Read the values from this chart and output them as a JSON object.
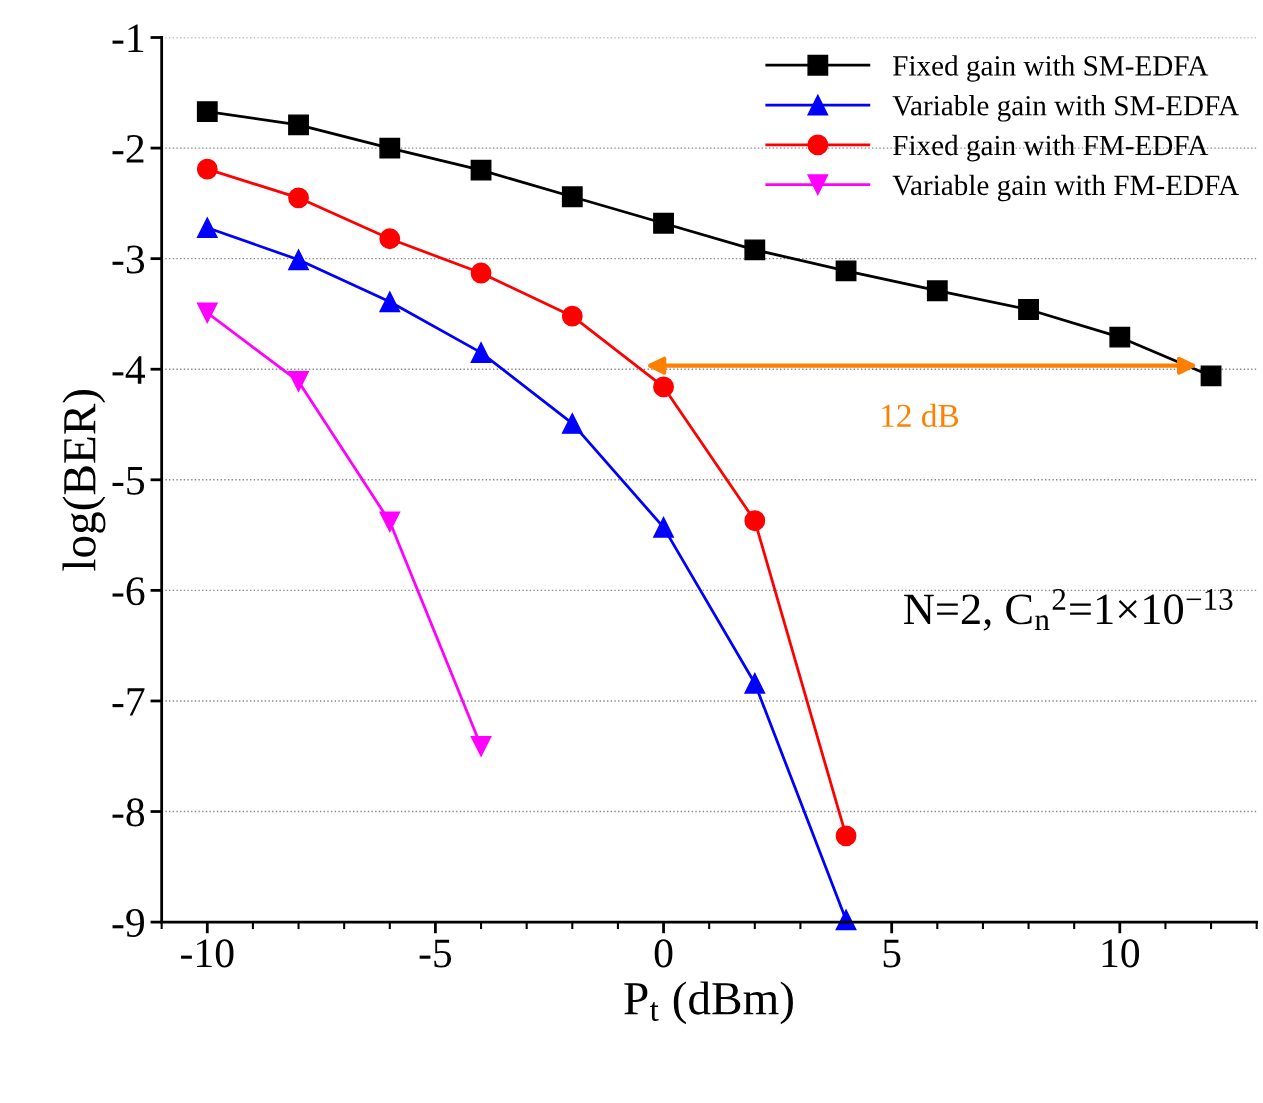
{
  "chart_data": {
    "type": "line",
    "xlabel": "P$_{t}$ (dBm)",
    "ylabel": "log(BER)",
    "x": [
      -10,
      -8,
      -6,
      -4,
      -2,
      0,
      2,
      4,
      6,
      8,
      10,
      12
    ],
    "series": [
      {
        "name": "Fixed gain with SM-EDFA",
        "color": "#000000",
        "marker": "square",
        "values": [
          -1.67,
          -1.79,
          -2.0,
          -2.2,
          -2.44,
          -2.68,
          -2.92,
          -3.11,
          -3.29,
          -3.46,
          -3.71,
          -4.06
        ]
      },
      {
        "name": "Variable gain with SM-EDFA",
        "color": "#0000ff",
        "marker": "triangle",
        "values": [
          -2.72,
          -3.01,
          -3.39,
          -3.85,
          -4.49,
          -5.43,
          -6.84,
          -8.98,
          null,
          null,
          null,
          null
        ]
      },
      {
        "name": "Fixed gain with FM-EDFA",
        "color": "#ff0000",
        "marker": "circle",
        "values": [
          -2.19,
          -2.45,
          -2.82,
          -3.13,
          -3.52,
          -4.16,
          -5.37,
          -8.22,
          null,
          null,
          null,
          null
        ]
      },
      {
        "name": "Variable gain with FM-EDFA",
        "color": "#ff00ff",
        "marker": "triangle_down",
        "values": [
          -3.49,
          -4.11,
          -5.38,
          -7.41,
          null,
          null,
          null,
          null,
          null,
          null,
          null,
          null
        ]
      }
    ],
    "xlim": [
      -11,
      13
    ],
    "xticks": [
      -10,
      -5,
      0,
      5,
      10
    ],
    "ylim": [
      -9,
      -1
    ],
    "yticks": [
      -9,
      -8,
      -7,
      -6,
      -5,
      -4,
      -3,
      -2,
      -1
    ],
    "grid": "y",
    "legend": "top right",
    "line_style": "solid",
    "annotations": [
      "12 dB",
      "N=2, C$_{n}$$^{2}$=1×10$^{−13}$"
    ]
  }
}
